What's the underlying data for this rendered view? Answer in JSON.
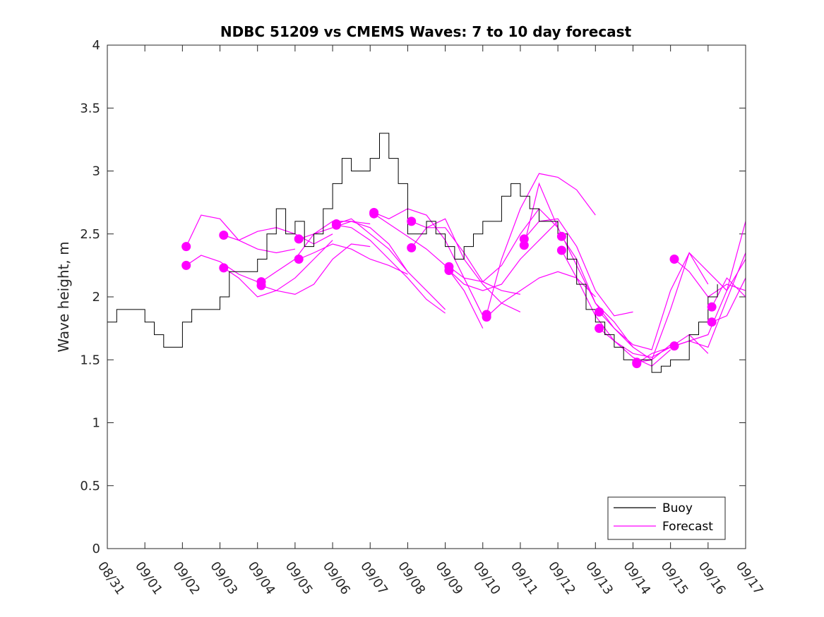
{
  "chart_data": {
    "type": "line",
    "title": "NDBC 51209 vs CMEMS Waves: 7 to 10 day forecast",
    "xlabel": "",
    "ylabel": "Wave height, m",
    "xlim": [
      0,
      17
    ],
    "ylim": [
      0,
      4
    ],
    "x_tick_labels": [
      "08/31",
      "09/01",
      "09/02",
      "09/03",
      "09/04",
      "09/05",
      "09/06",
      "09/07",
      "09/08",
      "09/09",
      "09/10",
      "09/11",
      "09/12",
      "09/13",
      "09/14",
      "09/15",
      "09/16",
      "09/17"
    ],
    "y_ticks": [
      0,
      0.5,
      1,
      1.5,
      2,
      2.5,
      3,
      3.5,
      4
    ],
    "y_tick_labels": [
      "0",
      "0.5",
      "1",
      "1.5",
      "2",
      "2.5",
      "3",
      "3.5",
      "4"
    ],
    "legend": {
      "position": "bottom-right",
      "entries": [
        "Buoy",
        "Forecast"
      ]
    },
    "colors": {
      "buoy": "#000000",
      "forecast": "#ff00ff"
    },
    "buoy": {
      "name": "Buoy",
      "x": [
        0.0,
        0.25,
        0.5,
        0.75,
        1.0,
        1.25,
        1.5,
        1.75,
        2.0,
        2.25,
        2.5,
        2.75,
        3.0,
        3.25,
        3.5,
        3.75,
        4.0,
        4.25,
        4.5,
        4.75,
        5.0,
        5.25,
        5.5,
        5.75,
        6.0,
        6.25,
        6.5,
        6.75,
        7.0,
        7.25,
        7.5,
        7.75,
        8.0,
        8.25,
        8.5,
        8.75,
        9.0,
        9.25,
        9.5,
        9.75,
        10.0,
        10.25,
        10.5,
        10.75,
        11.0,
        11.25,
        11.5,
        11.75,
        12.0,
        12.25,
        12.5,
        12.75,
        13.0,
        13.25,
        13.5,
        13.75,
        14.0,
        14.25,
        14.5,
        14.75,
        15.0,
        15.25,
        15.5,
        15.75,
        16.0,
        16.25
      ],
      "y": [
        1.8,
        1.9,
        1.9,
        1.9,
        1.8,
        1.7,
        1.6,
        1.6,
        1.8,
        1.9,
        1.9,
        1.9,
        2.0,
        2.2,
        2.2,
        2.2,
        2.3,
        2.5,
        2.7,
        2.5,
        2.6,
        2.4,
        2.5,
        2.7,
        2.9,
        3.1,
        3.0,
        3.0,
        3.1,
        3.3,
        3.1,
        2.9,
        2.5,
        2.5,
        2.6,
        2.5,
        2.4,
        2.3,
        2.4,
        2.5,
        2.6,
        2.6,
        2.8,
        2.9,
        2.8,
        2.7,
        2.6,
        2.6,
        2.5,
        2.3,
        2.1,
        1.9,
        1.8,
        1.7,
        1.6,
        1.5,
        1.5,
        1.5,
        1.4,
        1.45,
        1.5,
        1.5,
        1.7,
        1.8,
        2.0,
        2.1
      ]
    },
    "forecast_series": [
      {
        "name": "Forecast 09/02 a",
        "x": [
          2.1,
          2.5,
          3.0,
          3.5,
          4.0,
          4.5,
          5.0
        ],
        "y": [
          2.4,
          2.65,
          2.62,
          2.45,
          2.38,
          2.35,
          2.38
        ]
      },
      {
        "name": "Forecast 09/02 b",
        "x": [
          2.1,
          2.5,
          3.0,
          3.5,
          4.0
        ],
        "y": [
          2.25,
          2.33,
          2.28,
          2.18,
          2.12
        ]
      },
      {
        "name": "Forecast 09/03 a",
        "x": [
          3.1,
          3.5,
          4.0,
          4.5,
          5.0,
          5.5,
          6.0
        ],
        "y": [
          2.49,
          2.45,
          2.52,
          2.55,
          2.5,
          2.42,
          2.5
        ]
      },
      {
        "name": "Forecast 09/03 b",
        "x": [
          3.1,
          3.5,
          4.0,
          4.5,
          5.0,
          5.5,
          6.0
        ],
        "y": [
          2.23,
          2.15,
          2.0,
          2.05,
          2.15,
          2.3,
          2.45
        ]
      },
      {
        "name": "Forecast 09/04 a",
        "x": [
          4.1,
          4.5,
          5.0,
          5.5,
          6.0,
          6.5,
          7.0
        ],
        "y": [
          2.12,
          2.2,
          2.3,
          2.5,
          2.6,
          2.6,
          2.58
        ]
      },
      {
        "name": "Forecast 09/04 b",
        "x": [
          4.1,
          4.5,
          5.0,
          5.5,
          6.0,
          6.5,
          7.0
        ],
        "y": [
          2.09,
          2.05,
          2.02,
          2.1,
          2.3,
          2.42,
          2.4
        ]
      },
      {
        "name": "Forecast 09/05 a",
        "x": [
          5.1,
          5.5,
          6.0,
          6.5,
          7.0,
          7.5,
          8.0
        ],
        "y": [
          2.46,
          2.5,
          2.55,
          2.6,
          2.55,
          2.42,
          2.2
        ]
      },
      {
        "name": "Forecast 09/05 b",
        "x": [
          5.1,
          5.5,
          6.0,
          6.5,
          7.0,
          7.5,
          8.0
        ],
        "y": [
          2.3,
          2.35,
          2.42,
          2.38,
          2.3,
          2.25,
          2.18
        ]
      },
      {
        "name": "Forecast 09/06 a",
        "x": [
          6.1,
          6.5,
          7.0,
          7.5,
          8.0,
          8.5,
          9.0
        ],
        "y": [
          2.58,
          2.62,
          2.5,
          2.38,
          2.2,
          2.05,
          1.9
        ]
      },
      {
        "name": "Forecast 09/06 b",
        "x": [
          6.1,
          6.5,
          7.0,
          7.5,
          8.0,
          8.5,
          9.0
        ],
        "y": [
          2.57,
          2.55,
          2.45,
          2.3,
          2.15,
          1.98,
          1.87
        ]
      },
      {
        "name": "Forecast 09/07 a",
        "x": [
          7.1,
          7.5,
          8.0,
          8.5,
          9.0,
          9.5,
          10.0
        ],
        "y": [
          2.67,
          2.62,
          2.7,
          2.65,
          2.45,
          2.15,
          1.85
        ]
      },
      {
        "name": "Forecast 09/07 b",
        "x": [
          7.1,
          7.5,
          8.0,
          8.5,
          9.0,
          9.5,
          10.0
        ],
        "y": [
          2.66,
          2.58,
          2.48,
          2.38,
          2.25,
          2.05,
          1.75
        ]
      },
      {
        "name": "Forecast 09/08 a",
        "x": [
          8.1,
          8.5,
          9.0,
          9.5,
          10.0,
          10.5,
          11.0
        ],
        "y": [
          2.6,
          2.55,
          2.55,
          2.35,
          2.12,
          2.05,
          2.02
        ]
      },
      {
        "name": "Forecast 09/08 b",
        "x": [
          8.1,
          8.5,
          9.0,
          9.5,
          10.0,
          10.5,
          11.0
        ],
        "y": [
          2.39,
          2.55,
          2.62,
          2.3,
          2.1,
          1.95,
          1.88
        ]
      },
      {
        "name": "Forecast 09/09 a",
        "x": [
          9.1,
          9.5,
          10.0,
          10.5,
          11.0,
          11.5,
          12.0
        ],
        "y": [
          2.24,
          2.15,
          2.12,
          2.25,
          2.5,
          2.7,
          2.55
        ]
      },
      {
        "name": "Forecast 09/09 b",
        "x": [
          9.1,
          9.5,
          10.0,
          10.5,
          11.0,
          11.5,
          12.0
        ],
        "y": [
          2.21,
          2.1,
          2.05,
          2.1,
          2.3,
          2.45,
          2.6
        ]
      },
      {
        "name": "Forecast 09/10 a",
        "x": [
          10.1,
          10.5,
          11.0,
          11.5,
          12.0,
          12.5,
          13.0
        ],
        "y": [
          1.86,
          2.3,
          2.7,
          2.98,
          2.95,
          2.85,
          2.65
        ]
      },
      {
        "name": "Forecast 09/10 b",
        "x": [
          10.1,
          10.5,
          11.0,
          11.5,
          12.0,
          12.5,
          13.0
        ],
        "y": [
          1.84,
          1.95,
          2.05,
          2.15,
          2.2,
          2.15,
          2.0
        ]
      },
      {
        "name": "Forecast 09/11 a",
        "x": [
          11.1,
          11.5,
          12.0,
          12.5,
          13.0,
          13.5,
          14.0
        ],
        "y": [
          2.46,
          2.6,
          2.62,
          2.4,
          2.05,
          1.85,
          1.88
        ]
      },
      {
        "name": "Forecast 09/11 b",
        "x": [
          11.1,
          11.5,
          12.0,
          12.5,
          13.0,
          13.5,
          14.0
        ],
        "y": [
          2.41,
          2.9,
          2.55,
          2.25,
          1.95,
          1.8,
          1.6
        ]
      },
      {
        "name": "Forecast 09/12 a",
        "x": [
          12.1,
          12.5,
          13.0,
          13.5,
          14.0,
          14.5,
          15.0
        ],
        "y": [
          2.48,
          2.3,
          1.95,
          1.75,
          1.6,
          1.5,
          1.62
        ]
      },
      {
        "name": "Forecast 09/12 b",
        "x": [
          12.1,
          12.5,
          13.0,
          13.5,
          14.0,
          14.5,
          15.0
        ],
        "y": [
          2.37,
          2.15,
          1.85,
          1.65,
          1.52,
          1.45,
          1.58
        ]
      },
      {
        "name": "Forecast 09/13 a",
        "x": [
          13.1,
          13.5,
          14.0,
          14.5,
          15.0,
          15.5,
          16.0
        ],
        "y": [
          1.88,
          1.75,
          1.62,
          1.58,
          2.05,
          2.35,
          2.1
        ]
      },
      {
        "name": "Forecast 09/13 b",
        "x": [
          13.1,
          13.5,
          14.0,
          14.5,
          15.0,
          15.5,
          16.0
        ],
        "y": [
          1.75,
          1.65,
          1.55,
          1.52,
          1.6,
          1.7,
          1.55
        ]
      },
      {
        "name": "Forecast 09/14 a",
        "x": [
          14.1,
          14.5,
          15.0,
          15.5,
          16.0,
          16.5,
          17.0
        ],
        "y": [
          1.48,
          1.5,
          1.9,
          2.35,
          2.2,
          2.05,
          2.3
        ]
      },
      {
        "name": "Forecast 09/14 b",
        "x": [
          14.1,
          14.5,
          15.0,
          15.5,
          16.0,
          16.5,
          17.0
        ],
        "y": [
          1.47,
          1.55,
          1.6,
          1.65,
          1.7,
          2.05,
          2.6
        ]
      },
      {
        "name": "Forecast 09/15 a",
        "x": [
          15.1,
          15.5,
          16.0,
          16.5,
          17.0
        ],
        "y": [
          2.3,
          2.2,
          2.0,
          2.1,
          2.05
        ]
      },
      {
        "name": "Forecast 09/15 b",
        "x": [
          15.1,
          15.5,
          16.0,
          16.5,
          17.0
        ],
        "y": [
          1.61,
          1.65,
          1.6,
          1.98,
          2.35
        ]
      },
      {
        "name": "Forecast 09/16 a",
        "x": [
          16.1,
          16.5,
          17.0
        ],
        "y": [
          1.92,
          2.15,
          2.0
        ]
      },
      {
        "name": "Forecast 09/16 b",
        "x": [
          16.1,
          16.5,
          17.0
        ],
        "y": [
          1.8,
          1.85,
          2.15
        ]
      }
    ]
  }
}
